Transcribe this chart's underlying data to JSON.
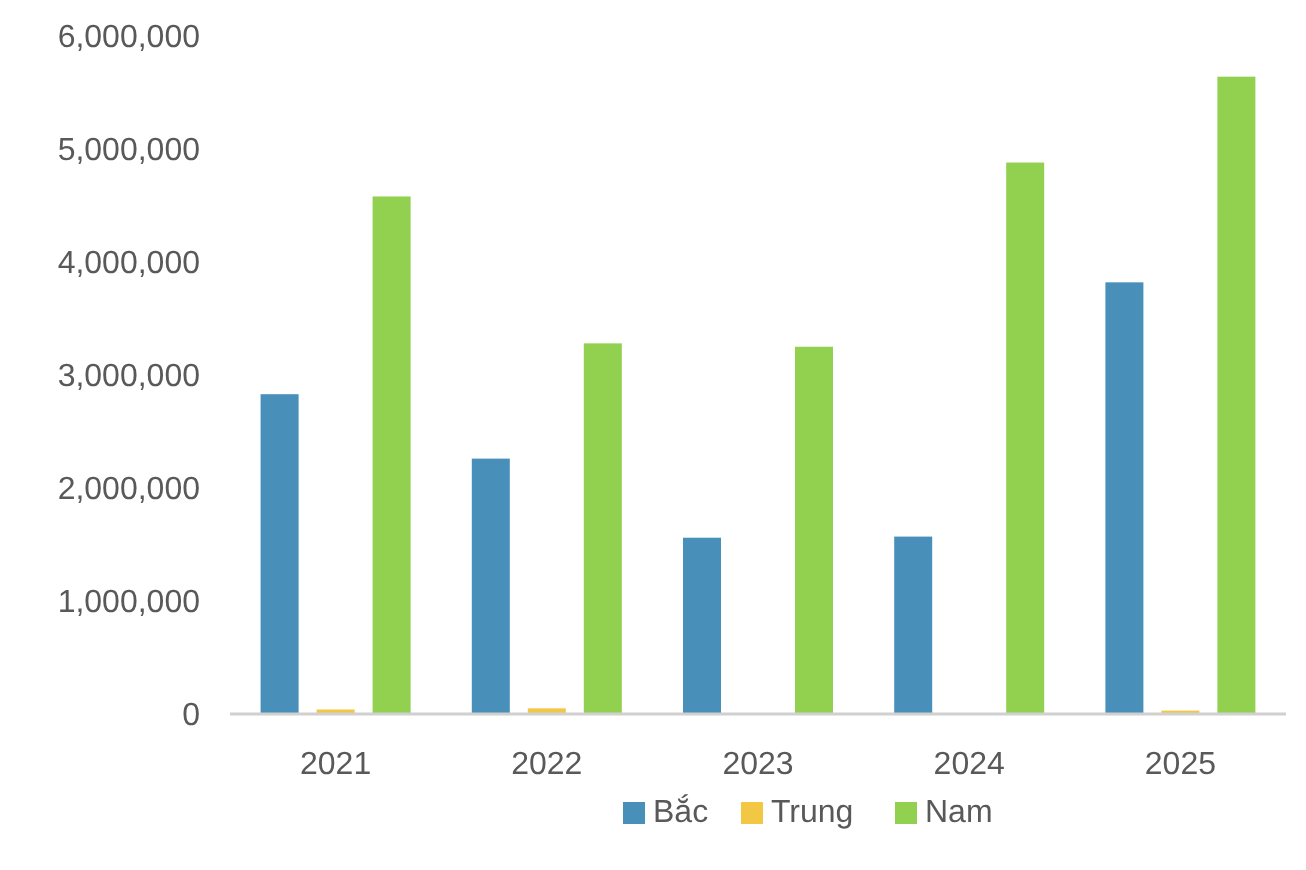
{
  "chart_data": {
    "type": "bar",
    "categories": [
      "2021",
      "2022",
      "2023",
      "2024",
      "2025"
    ],
    "series": [
      {
        "name": "Bắc",
        "color": "#488fba",
        "values": [
          2830000,
          2260000,
          1560000,
          1570000,
          3820000
        ]
      },
      {
        "name": "Trung",
        "color": "#f2c744",
        "values": [
          40000,
          50000,
          0,
          0,
          30000
        ]
      },
      {
        "name": "Nam",
        "color": "#92d050",
        "values": [
          4580000,
          3280000,
          3250000,
          4880000,
          5640000
        ]
      }
    ],
    "ylim": [
      0,
      6000000
    ],
    "yticks": [
      {
        "value": 0,
        "label": "0"
      },
      {
        "value": 1000000,
        "label": "1,000,000"
      },
      {
        "value": 2000000,
        "label": "2,000,000"
      },
      {
        "value": 3000000,
        "label": "3,000,000"
      },
      {
        "value": 4000000,
        "label": "4,000,000"
      },
      {
        "value": 5000000,
        "label": "5,000,000"
      },
      {
        "value": 6000000,
        "label": "6,000,000"
      }
    ],
    "grid": false,
    "legend": "bottom"
  }
}
